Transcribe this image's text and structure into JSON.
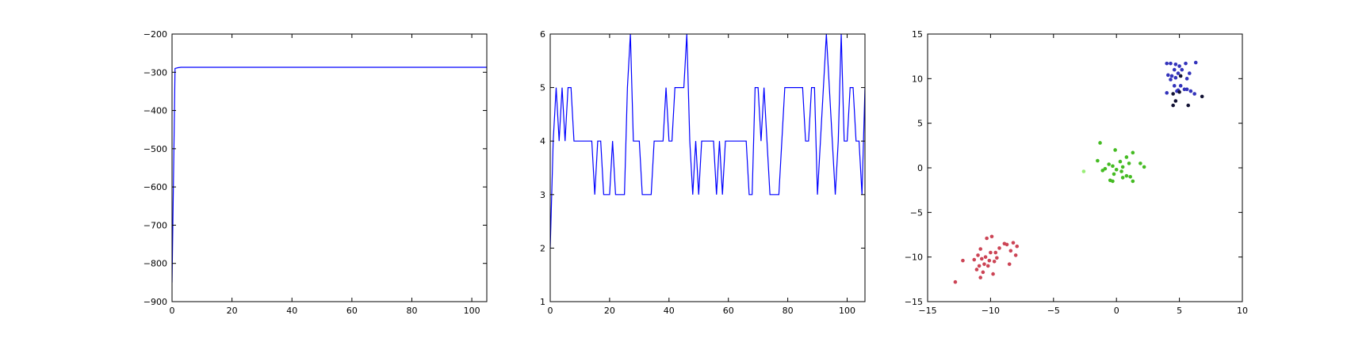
{
  "chart_data": [
    {
      "type": "line",
      "xlim": [
        0,
        105
      ],
      "ylim": [
        -900,
        -200
      ],
      "xticks": [
        0,
        20,
        40,
        60,
        80,
        100
      ],
      "yticks": [
        -900,
        -800,
        -700,
        -600,
        -500,
        -400,
        -300,
        -200
      ],
      "grid": false,
      "series": [
        {
          "color": "#0000ff",
          "x": [
            0,
            1,
            2,
            3,
            4,
            5,
            105
          ],
          "y": [
            -850,
            -290,
            -288,
            -287,
            -287,
            -287,
            -287
          ]
        }
      ]
    },
    {
      "type": "line",
      "xlim": [
        0,
        106
      ],
      "ylim": [
        1,
        6
      ],
      "xticks": [
        0,
        20,
        40,
        60,
        80,
        100
      ],
      "yticks": [
        1,
        2,
        3,
        4,
        5,
        6
      ],
      "grid": false,
      "series": [
        {
          "color": "#0000ff",
          "x": [
            0,
            1,
            2,
            3,
            4,
            5,
            6,
            7,
            8,
            9,
            10,
            11,
            12,
            13,
            14,
            15,
            16,
            17,
            18,
            19,
            20,
            21,
            22,
            23,
            24,
            25,
            26,
            27,
            28,
            29,
            30,
            31,
            32,
            33,
            34,
            35,
            36,
            37,
            38,
            39,
            40,
            41,
            42,
            43,
            44,
            45,
            46,
            47,
            48,
            49,
            50,
            51,
            52,
            53,
            54,
            55,
            56,
            57,
            58,
            59,
            60,
            61,
            62,
            63,
            64,
            65,
            66,
            67,
            68,
            69,
            70,
            71,
            72,
            73,
            74,
            75,
            76,
            77,
            78,
            79,
            80,
            81,
            82,
            83,
            84,
            85,
            86,
            87,
            88,
            89,
            90,
            91,
            92,
            93,
            94,
            95,
            96,
            97,
            98,
            99,
            100,
            101,
            102,
            103,
            104,
            105,
            106
          ],
          "y": [
            2,
            4,
            5,
            4,
            5,
            4,
            5,
            5,
            4,
            4,
            4,
            4,
            4,
            4,
            4,
            3,
            4,
            4,
            3,
            3,
            3,
            4,
            3,
            3,
            3,
            3,
            5,
            6,
            4,
            4,
            4,
            3,
            3,
            3,
            3,
            4,
            4,
            4,
            4,
            5,
            4,
            4,
            5,
            5,
            5,
            5,
            6,
            4,
            3,
            4,
            3,
            4,
            4,
            4,
            4,
            4,
            3,
            4,
            3,
            4,
            4,
            4,
            4,
            4,
            4,
            4,
            4,
            3,
            3,
            5,
            5,
            4,
            5,
            4,
            3,
            3,
            3,
            3,
            4,
            5,
            5,
            5,
            5,
            5,
            5,
            5,
            4,
            4,
            5,
            5,
            3,
            4,
            5,
            6,
            5,
            4,
            3,
            4,
            6,
            4,
            4,
            5,
            5,
            4,
            4,
            3,
            5
          ]
        }
      ]
    },
    {
      "type": "scatter",
      "xlim": [
        -15,
        10
      ],
      "ylim": [
        -15,
        15
      ],
      "xticks": [
        -15,
        -10,
        -5,
        0,
        5,
        10
      ],
      "yticks": [
        -15,
        -10,
        -5,
        0,
        5,
        10,
        15
      ],
      "grid": false,
      "series": [
        {
          "color": "#3333bb",
          "points": [
            [
              4.0,
              11.7
            ],
            [
              4.3,
              11.7
            ],
            [
              4.7,
              11.6
            ],
            [
              5.0,
              11.4
            ],
            [
              5.2,
              11.0
            ],
            [
              5.5,
              11.7
            ],
            [
              6.3,
              11.8
            ],
            [
              4.6,
              11.0
            ],
            [
              4.9,
              10.6
            ],
            [
              4.1,
              10.4
            ],
            [
              4.4,
              10.3
            ],
            [
              5.8,
              10.6
            ],
            [
              5.6,
              10.0
            ],
            [
              4.7,
              10.1
            ],
            [
              4.3,
              9.9
            ],
            [
              5.1,
              9.2
            ],
            [
              4.9,
              8.7
            ],
            [
              5.4,
              8.8
            ],
            [
              5.6,
              8.8
            ],
            [
              4.8,
              8.6
            ],
            [
              4.0,
              8.4
            ],
            [
              5.9,
              8.6
            ],
            [
              6.2,
              8.3
            ],
            [
              4.6,
              9.2
            ]
          ]
        },
        {
          "color": "#111133",
          "points": [
            [
              5.1,
              10.3
            ],
            [
              6.8,
              8.0
            ],
            [
              4.7,
              7.5
            ],
            [
              4.5,
              7.0
            ],
            [
              5.7,
              7.0
            ],
            [
              4.5,
              8.3
            ],
            [
              5.0,
              8.5
            ]
          ]
        },
        {
          "color": "#44bb22",
          "points": [
            [
              -1.3,
              2.8
            ],
            [
              -0.1,
              2.0
            ],
            [
              1.3,
              1.7
            ],
            [
              0.8,
              1.2
            ],
            [
              -1.5,
              0.8
            ],
            [
              0.3,
              0.7
            ],
            [
              1.0,
              0.5
            ],
            [
              1.9,
              0.5
            ],
            [
              -0.6,
              0.4
            ],
            [
              -0.3,
              0.2
            ],
            [
              0.5,
              0.1
            ],
            [
              2.2,
              0.1
            ],
            [
              -0.9,
              -0.1
            ],
            [
              0.0,
              -0.2
            ],
            [
              -1.1,
              -0.3
            ],
            [
              0.4,
              -0.4
            ],
            [
              -0.2,
              -0.7
            ],
            [
              0.8,
              -0.9
            ],
            [
              1.1,
              -1.0
            ],
            [
              0.5,
              -1.1
            ],
            [
              -0.5,
              -1.4
            ],
            [
              1.3,
              -1.5
            ],
            [
              -0.3,
              -1.5
            ]
          ]
        },
        {
          "color": "#99ee77",
          "points": [
            [
              -2.6,
              -0.4
            ]
          ]
        },
        {
          "color": "#cc4455",
          "points": [
            [
              -9.9,
              -7.7
            ],
            [
              -10.3,
              -7.9
            ],
            [
              -8.9,
              -8.5
            ],
            [
              -8.7,
              -8.6
            ],
            [
              -8.2,
              -8.4
            ],
            [
              -7.9,
              -8.8
            ],
            [
              -10.8,
              -9.1
            ],
            [
              -9.3,
              -9.0
            ],
            [
              -8.4,
              -9.3
            ],
            [
              -10.0,
              -9.5
            ],
            [
              -9.6,
              -9.5
            ],
            [
              -11.0,
              -9.8
            ],
            [
              -8.0,
              -9.8
            ],
            [
              -10.4,
              -10.0
            ],
            [
              -9.5,
              -10.1
            ],
            [
              -12.2,
              -10.4
            ],
            [
              -11.3,
              -10.3
            ],
            [
              -10.7,
              -10.2
            ],
            [
              -10.1,
              -10.4
            ],
            [
              -9.7,
              -10.5
            ],
            [
              -8.5,
              -10.8
            ],
            [
              -10.5,
              -10.8
            ],
            [
              -10.9,
              -11.0
            ],
            [
              -10.2,
              -11.0
            ],
            [
              -11.1,
              -11.4
            ],
            [
              -10.6,
              -11.7
            ],
            [
              -9.8,
              -11.9
            ],
            [
              -10.8,
              -12.3
            ],
            [
              -12.8,
              -12.8
            ]
          ]
        }
      ]
    }
  ]
}
